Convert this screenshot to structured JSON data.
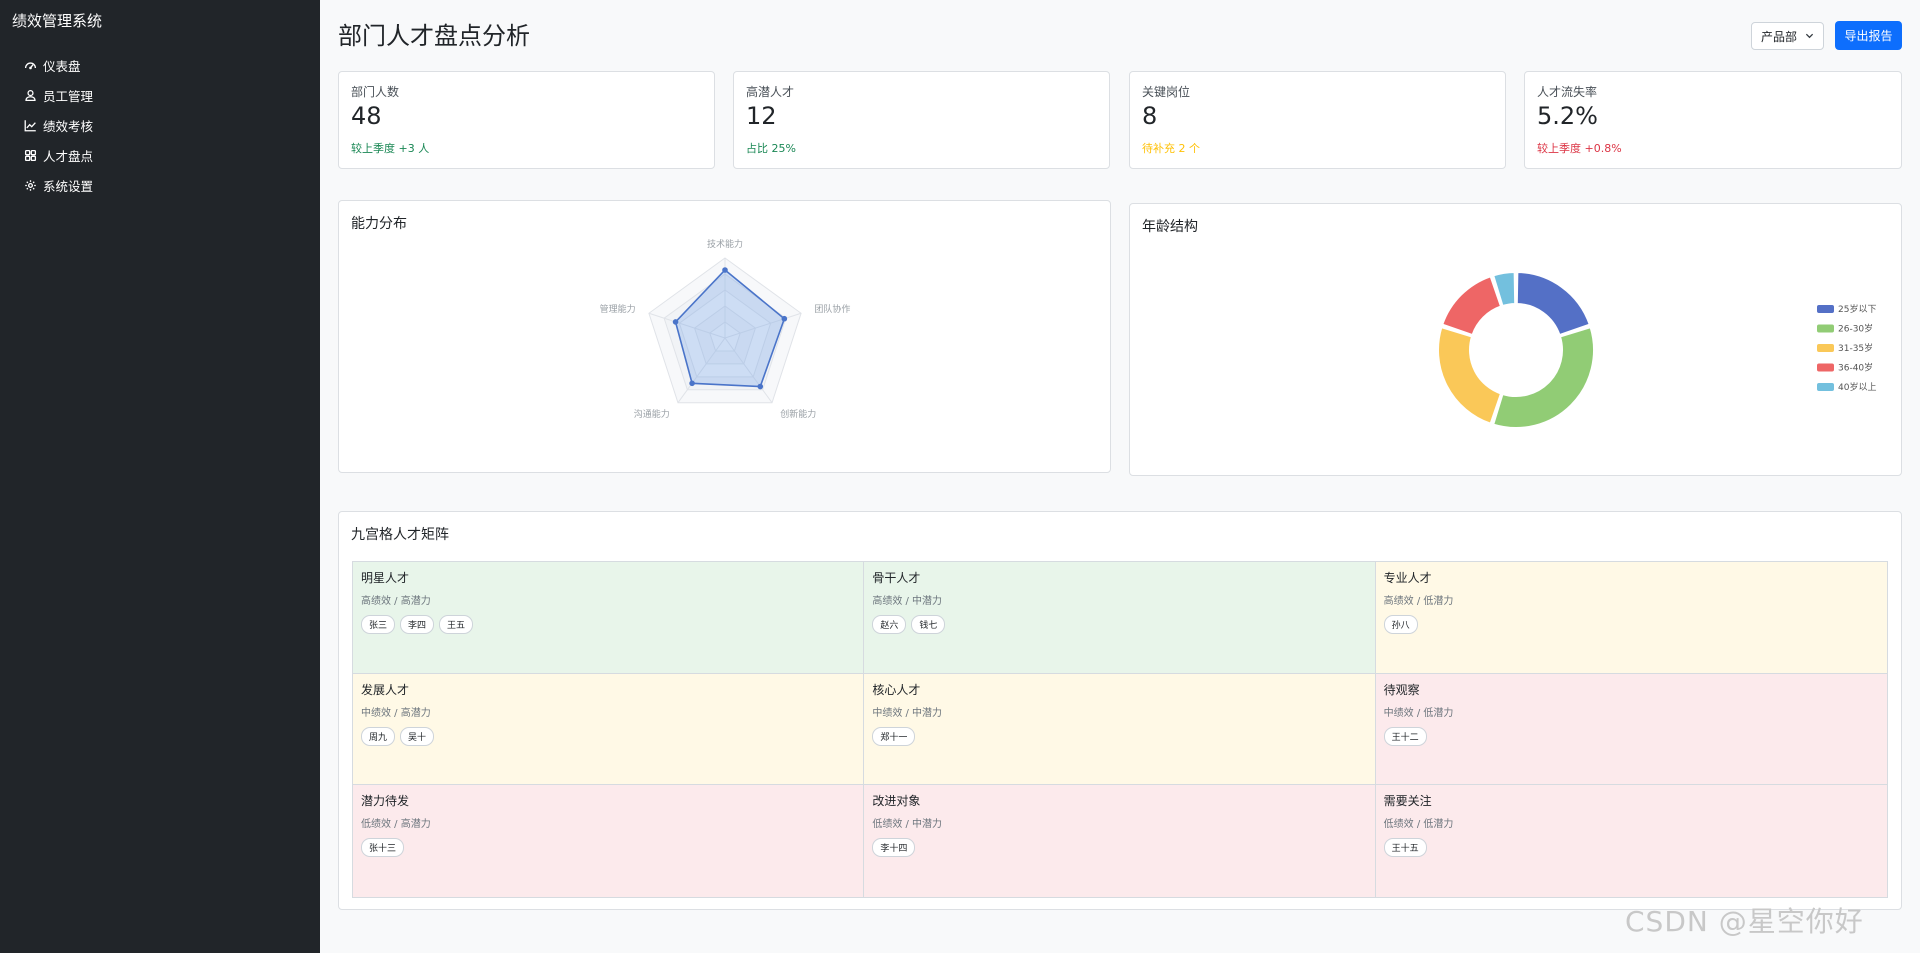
{
  "app": {
    "title": "绩效管理系统"
  },
  "sidebar": {
    "items": [
      {
        "label": "仪表盘",
        "icon": "speedometer-icon"
      },
      {
        "label": "员工管理",
        "icon": "person-icon"
      },
      {
        "label": "绩效考核",
        "icon": "graph-up-icon"
      },
      {
        "label": "人才盘点",
        "icon": "grid-icon"
      },
      {
        "label": "系统设置",
        "icon": "gear-icon"
      }
    ]
  },
  "header": {
    "title": "部门人才盘点分析",
    "department_selected": "产品部",
    "export_label": "导出报告"
  },
  "stats": [
    {
      "label": "部门人数",
      "value": "48",
      "note": "较上季度 +3 人",
      "note_color": "#198754"
    },
    {
      "label": "高潜人才",
      "value": "12",
      "note": "占比 25%",
      "note_color": "#198754"
    },
    {
      "label": "关键岗位",
      "value": "8",
      "note": "待补充 2 个",
      "note_color": "#ffc107"
    },
    {
      "label": "人才流失率",
      "value": "5.2%",
      "note": "较上季度 +0.8%",
      "note_color": "#dc3545"
    }
  ],
  "ability": {
    "title": "能力分布",
    "chart_data": {
      "type": "radar",
      "axes": [
        "技术能力",
        "团队协作",
        "创新能力",
        "沟通能力",
        "管理能力"
      ],
      "values": [
        85,
        78,
        75,
        70,
        65
      ],
      "max": 100,
      "color": "#4a74c9"
    }
  },
  "age": {
    "title": "年龄结构",
    "chart_data": {
      "type": "pie",
      "donut": true,
      "categories": [
        "25岁以下",
        "26-30岁",
        "31-35岁",
        "36-40岁",
        "40岁以上"
      ],
      "values": [
        20,
        35,
        25,
        15,
        5
      ],
      "colors": [
        "#5470c6",
        "#91cc75",
        "#fac858",
        "#ee6666",
        "#73c0de"
      ],
      "legend": "right"
    }
  },
  "matrix": {
    "title": "九宫格人才矩阵",
    "cells": [
      {
        "title": "明星人才",
        "sub": "高绩效 / 高潜力",
        "tone": "green",
        "people": [
          "张三",
          "李四",
          "王五"
        ]
      },
      {
        "title": "骨干人才",
        "sub": "高绩效 / 中潜力",
        "tone": "green",
        "people": [
          "赵六",
          "钱七"
        ]
      },
      {
        "title": "专业人才",
        "sub": "高绩效 / 低潜力",
        "tone": "yellow",
        "people": [
          "孙八"
        ]
      },
      {
        "title": "发展人才",
        "sub": "中绩效 / 高潜力",
        "tone": "yellow",
        "people": [
          "周九",
          "吴十"
        ]
      },
      {
        "title": "核心人才",
        "sub": "中绩效 / 中潜力",
        "tone": "yellow",
        "people": [
          "郑十一"
        ]
      },
      {
        "title": "待观察",
        "sub": "中绩效 / 低潜力",
        "tone": "red",
        "people": [
          "王十二"
        ]
      },
      {
        "title": "潜力待发",
        "sub": "低绩效 / 高潜力",
        "tone": "red",
        "people": [
          "张十三"
        ]
      },
      {
        "title": "改进对象",
        "sub": "低绩效 / 中潜力",
        "tone": "red",
        "people": [
          "李十四"
        ]
      },
      {
        "title": "需要关注",
        "sub": "低绩效 / 低潜力",
        "tone": "red",
        "people": [
          "王十五"
        ]
      }
    ]
  },
  "watermark": "CSDN @星空你好"
}
